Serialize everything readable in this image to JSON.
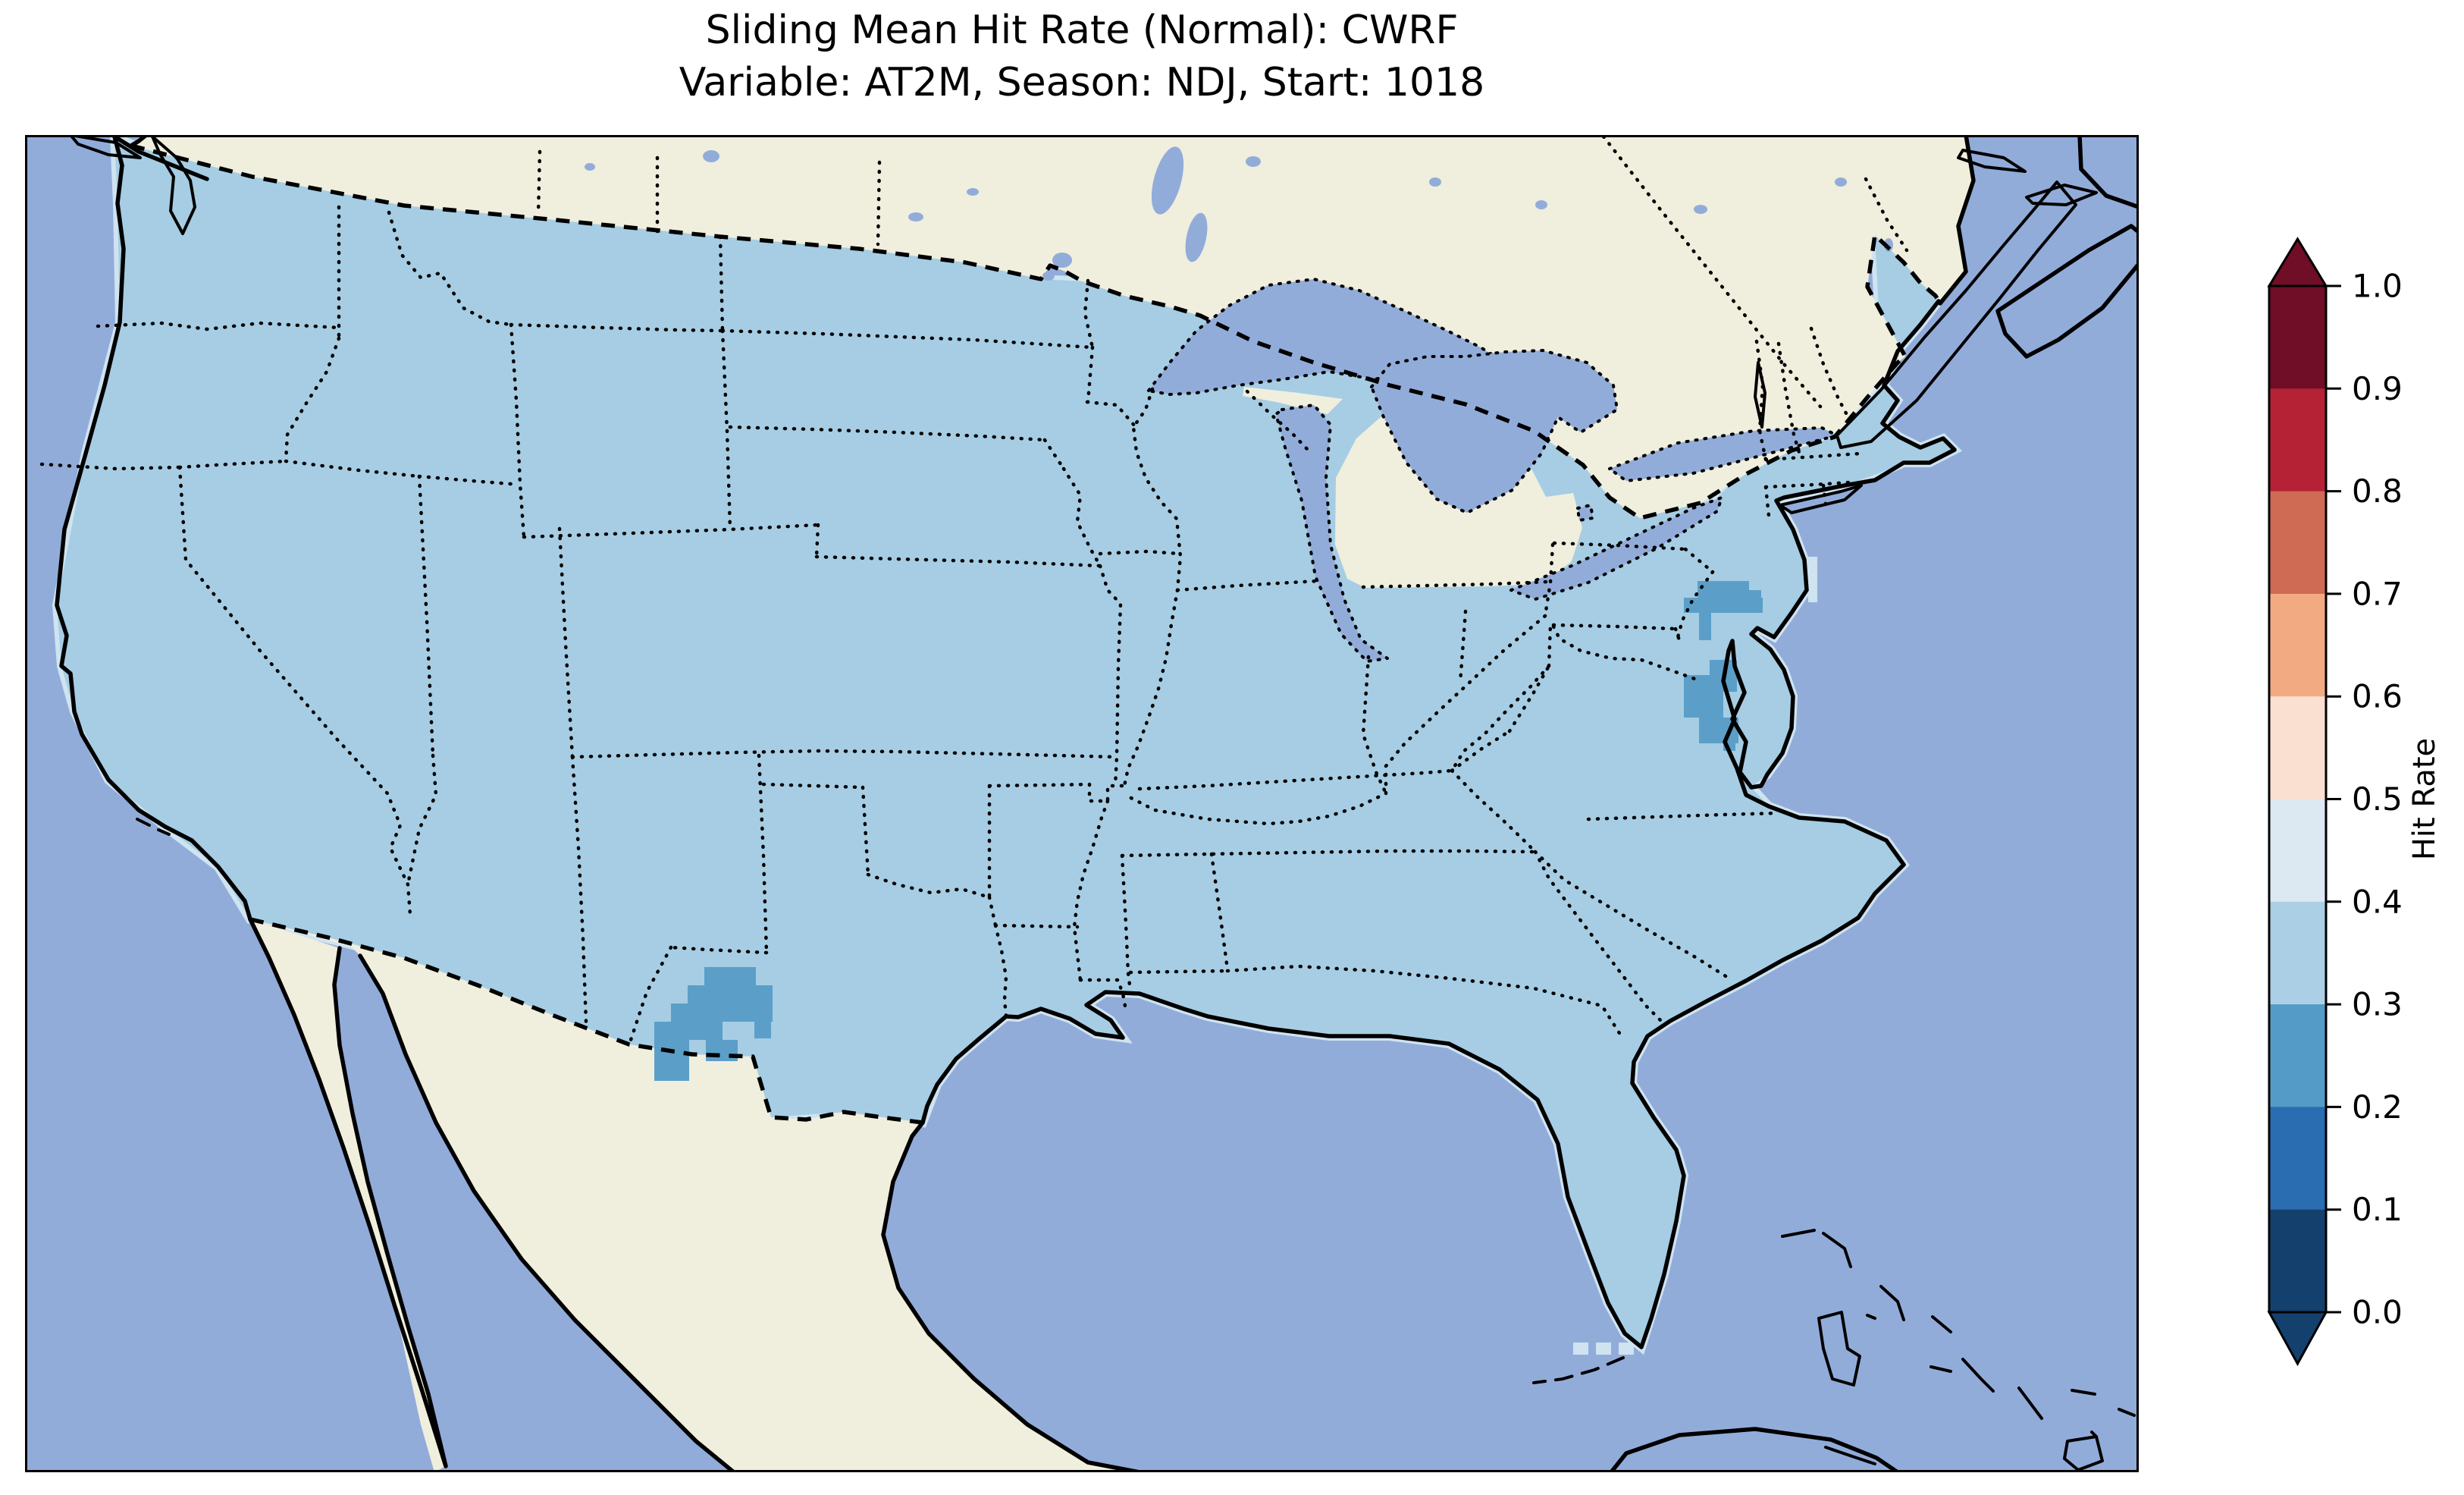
{
  "title": {
    "line1": "Sliding Mean Hit Rate (Normal): CWRF",
    "line2": "Variable: AT2M, Season: NDJ, Start: 1018"
  },
  "colorbar": {
    "label": "Hit Rate",
    "ticks": [
      "1.0",
      "0.9",
      "0.8",
      "0.7",
      "0.6",
      "0.5",
      "0.4",
      "0.3",
      "0.2",
      "0.1",
      "0.0"
    ],
    "segments": [
      {
        "range": "0.9-1.0",
        "color": "#6f0e26"
      },
      {
        "range": "0.8-0.9",
        "color": "#b52135"
      },
      {
        "range": "0.7-0.8",
        "color": "#cf6a55"
      },
      {
        "range": "0.6-0.7",
        "color": "#f2aa83"
      },
      {
        "range": "0.5-0.6",
        "color": "#fae0d0"
      },
      {
        "range": "0.4-0.5",
        "color": "#dce9f2"
      },
      {
        "range": "0.3-0.4",
        "color": "#abd0e5"
      },
      {
        "range": "0.2-0.3",
        "color": "#549cc7"
      },
      {
        "range": "0.1-0.2",
        "color": "#2a6db0"
      },
      {
        "range": "0.0-0.1",
        "color": "#14406e"
      }
    ],
    "extend_over_color": "#6f0e26",
    "extend_under_color": "#14406e"
  },
  "colors": {
    "water": "#92acda",
    "land": "#f0eedd",
    "us": "#a6cde3",
    "patch": "#5b9fc9",
    "lightcell": "#cfe3f0"
  },
  "chart_data": {
    "type": "heatmap",
    "title": "Sliding Mean Hit Rate (Normal): CWRF",
    "subtitle": "Variable: AT2M, Season: NDJ, Start: 1018",
    "model": "CWRF",
    "variable": "AT2M",
    "season": "NDJ",
    "start": "1018",
    "colorbar_label": "Hit Rate",
    "colorbar_range": [
      0.0,
      1.0
    ],
    "colorbar_bin_width": 0.1,
    "colormap": "RdBu_r discrete with extend arrows both ends",
    "region": "Continental United States (Lambert conformal style map)",
    "observations": [
      {
        "region": "Most of CONUS",
        "hit_rate": "0.3-0.4"
      },
      {
        "region": "West Texas cluster near New Mexico border",
        "hit_rate": "0.2-0.3"
      },
      {
        "region": "South-central Pennsylvania / Maryland / Virginia (Chesapeake Bay area)",
        "hit_rate": "0.2-0.3"
      },
      {
        "region": "Scattered coastal grid cells (south of Florida, NJ coast, lake edges)",
        "hit_rate": "0.4-0.5"
      },
      {
        "region": "Canada, Mexico, lower Michigan",
        "hit_rate": "no data (land shown cream)"
      }
    ],
    "map_features": [
      "solid black coastlines",
      "dotted state/province borders",
      "dashed international borders",
      "Great Lakes in water color"
    ]
  }
}
